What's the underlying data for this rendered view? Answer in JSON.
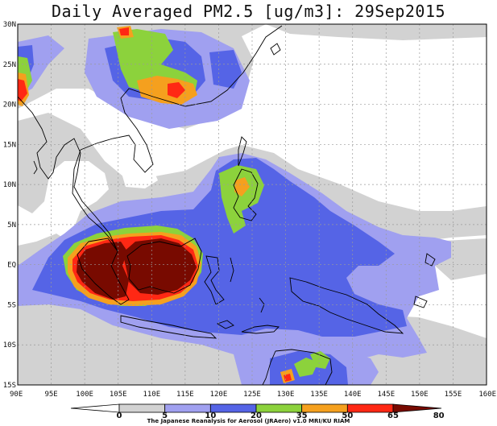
{
  "title": "Daily Averaged PM2.5 [ug/m3]: 29Sep2015",
  "lat_labels": [
    "30N",
    "25N",
    "20N",
    "15N",
    "10N",
    "5N",
    "EQ",
    "5S",
    "10S",
    "15S"
  ],
  "lon_labels": [
    "90E",
    "95E",
    "100E",
    "105E",
    "110E",
    "115E",
    "120E",
    "125E",
    "130E",
    "135E",
    "140E",
    "145E",
    "150E",
    "155E",
    "160E"
  ],
  "colorbar": {
    "levels": [
      "0",
      "5",
      "10",
      "20",
      "35",
      "50",
      "65",
      "80"
    ],
    "colors": [
      "#ffffff",
      "#d2d2d2",
      "#a0a0f0",
      "#5564e6",
      "#8cd23c",
      "#f5a01e",
      "#ff2814",
      "#780a00"
    ]
  },
  "credit": "The Japanese Reanalysis for Aerosol (JRAero) v1.0 MRI/KU RIAM",
  "colors": {
    "white": "#ffffff",
    "grey": "#d2d2d2",
    "light_blue": "#a0a0f0",
    "blue": "#5564e6",
    "green": "#8cd23c",
    "orange": "#f5a01e",
    "red": "#ff2814",
    "dark_red": "#780a00"
  }
}
